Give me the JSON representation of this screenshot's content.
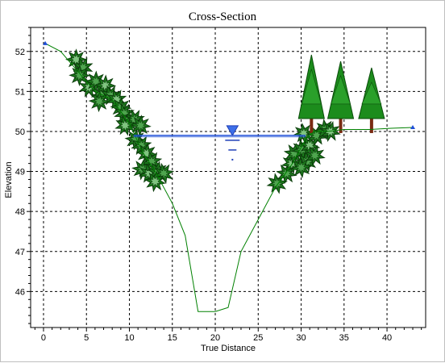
{
  "chart_data": {
    "type": "line",
    "title": "Cross-Section",
    "xlabel": "True Distance",
    "ylabel": "Elevation",
    "xlim": [
      -1.5,
      44.5
    ],
    "ylim": [
      45.1,
      52.6
    ],
    "xticks": [
      0,
      5,
      10,
      15,
      20,
      25,
      30,
      35,
      40
    ],
    "yticks": [
      46,
      47,
      48,
      49,
      50,
      51,
      52
    ],
    "grid": true,
    "series": [
      {
        "role": "ground-profile",
        "color": "#008000",
        "x": [
          0.2,
          2.0,
          4.0,
          6.0,
          8.0,
          10.0,
          11.5,
          13.0,
          15.0,
          16.5,
          18.0,
          20.0,
          21.5,
          23.0,
          25.0,
          27.0,
          29.0,
          30.5,
          31.5,
          33.0,
          35.0,
          38.0,
          40.5,
          43.0
        ],
        "y": [
          52.2,
          52.0,
          51.5,
          51.0,
          50.8,
          50.2,
          49.5,
          49.0,
          48.2,
          47.4,
          45.5,
          45.5,
          45.6,
          47.0,
          47.8,
          48.6,
          49.2,
          49.8,
          50.0,
          50.0,
          50.05,
          50.05,
          50.08,
          50.1
        ]
      },
      {
        "role": "water-surface",
        "color": "#1f4fd8",
        "x": [
          10.5,
          30.5
        ],
        "y": [
          49.9,
          49.9
        ]
      }
    ],
    "endpoint_markers": [
      {
        "x": 0.2,
        "y": 52.2
      },
      {
        "x": 43.0,
        "y": 50.1
      }
    ],
    "water_surface_symbol": {
      "x": 22.0,
      "y": 49.9
    },
    "shrubs": [
      {
        "x": 3.8,
        "y": 51.8
      },
      {
        "x": 4.6,
        "y": 51.6
      },
      {
        "x": 4.2,
        "y": 51.4
      },
      {
        "x": 5.3,
        "y": 51.1
      },
      {
        "x": 6.1,
        "y": 51.25
      },
      {
        "x": 6.7,
        "y": 50.95
      },
      {
        "x": 7.2,
        "y": 51.15
      },
      {
        "x": 7.8,
        "y": 50.9
      },
      {
        "x": 6.5,
        "y": 50.75
      },
      {
        "x": 8.5,
        "y": 50.8
      },
      {
        "x": 9.0,
        "y": 50.6
      },
      {
        "x": 9.4,
        "y": 50.45
      },
      {
        "x": 9.9,
        "y": 50.25
      },
      {
        "x": 10.6,
        "y": 50.3
      },
      {
        "x": 11.3,
        "y": 50.15
      },
      {
        "x": 9.5,
        "y": 50.15
      },
      {
        "x": 10.7,
        "y": 49.8
      },
      {
        "x": 11.4,
        "y": 49.65
      },
      {
        "x": 12.0,
        "y": 49.45
      },
      {
        "x": 12.6,
        "y": 49.25
      },
      {
        "x": 11.5,
        "y": 49.05
      },
      {
        "x": 12.3,
        "y": 48.95
      },
      {
        "x": 13.3,
        "y": 49.0
      },
      {
        "x": 14.0,
        "y": 48.95
      },
      {
        "x": 13.0,
        "y": 48.75
      },
      {
        "x": 27.2,
        "y": 48.7
      },
      {
        "x": 28.3,
        "y": 48.95
      },
      {
        "x": 28.9,
        "y": 49.2
      },
      {
        "x": 29.2,
        "y": 49.45
      },
      {
        "x": 30.1,
        "y": 49.55
      },
      {
        "x": 31.0,
        "y": 49.65
      },
      {
        "x": 30.7,
        "y": 49.25
      },
      {
        "x": 31.6,
        "y": 49.4
      },
      {
        "x": 30.3,
        "y": 49.95
      },
      {
        "x": 31.8,
        "y": 49.9
      },
      {
        "x": 32.8,
        "y": 50.05
      },
      {
        "x": 33.4,
        "y": 50.0
      },
      {
        "x": 30.0,
        "y": 49.1
      }
    ],
    "trees": [
      {
        "x": 31.2,
        "y": 50.0
      },
      {
        "x": 34.6,
        "y": 50.0
      },
      {
        "x": 38.2,
        "y": 50.0
      }
    ]
  }
}
